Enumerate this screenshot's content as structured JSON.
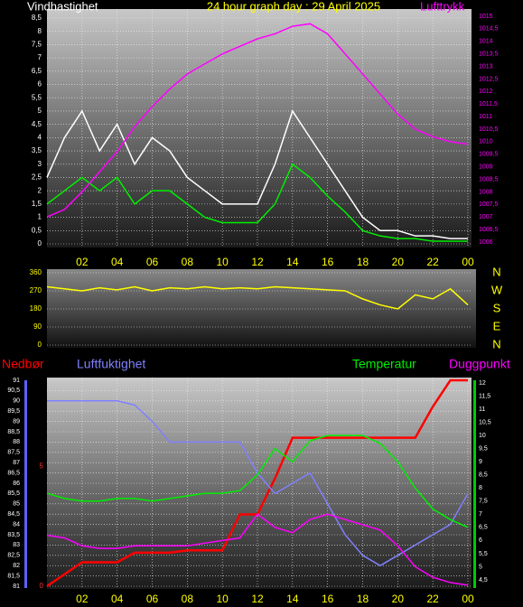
{
  "chart_data": [
    {
      "type": "line",
      "title": "24 hour graph day : 29 April 2025",
      "ylabel": "Vindhastighet",
      "y2label": "Lufttrykk",
      "x": [
        0,
        1,
        2,
        3,
        4,
        5,
        6,
        7,
        8,
        9,
        10,
        11,
        12,
        13,
        14,
        15,
        16,
        17,
        18,
        19,
        20,
        21,
        22,
        23,
        24
      ],
      "xlim": [
        0,
        24
      ],
      "xticks": [
        {
          "value": 2,
          "label": "02"
        },
        {
          "value": 4,
          "label": "04"
        },
        {
          "value": 6,
          "label": "06"
        },
        {
          "value": 8,
          "label": "08"
        },
        10,
        12,
        14,
        16,
        18,
        20,
        22,
        {
          "value": 24,
          "label": "00"
        }
      ],
      "ylim": [
        0,
        8.5
      ],
      "yticks": [
        0,
        {
          "value": 0.5,
          "label": "0,5"
        },
        1,
        {
          "value": 1.5,
          "label": "1,5"
        },
        2,
        {
          "value": 2.5,
          "label": "2,5"
        },
        3,
        {
          "value": 3.5,
          "label": "3,5"
        },
        4,
        {
          "value": 4.5,
          "label": "4,5"
        },
        5,
        {
          "value": 5.5,
          "label": "5,5"
        },
        6,
        {
          "value": 6.5,
          "label": "6,5"
        },
        7,
        {
          "value": 7.5,
          "label": "7,5"
        },
        8,
        {
          "value": 8.5,
          "label": "8,5"
        }
      ],
      "y2lim": [
        1006,
        1015
      ],
      "y2ticks": [
        1006,
        {
          "value": 1006.5,
          "label": "1006,5"
        },
        1007,
        {
          "value": 1007.5,
          "label": "1007,5"
        },
        1008,
        {
          "value": 1008.5,
          "label": "1008,5"
        },
        1009,
        {
          "value": 1009.5,
          "label": "1009,5"
        },
        1010,
        {
          "value": 1010.5,
          "label": "1010,5"
        },
        1011,
        {
          "value": 1011.5,
          "label": "1011,5"
        },
        1012,
        {
          "value": 1012.5,
          "label": "1012,5"
        },
        1013,
        {
          "value": 1013.5,
          "label": "1013,5"
        },
        1014,
        {
          "value": 1014.5,
          "label": "1014,5"
        },
        1015
      ],
      "grid": true,
      "series": [
        {
          "color": "#ffffff",
          "values": [
            2.5,
            4,
            5,
            3.5,
            4.5,
            3,
            4,
            3.5,
            2.5,
            2,
            1.5,
            1.5,
            1.5,
            3,
            5,
            4,
            3,
            2,
            1,
            0.5,
            0.5,
            0.3,
            0.3,
            0.2,
            0.2
          ]
        },
        {
          "color": "#00ee00",
          "values": [
            1.5,
            2,
            2.5,
            2,
            2.5,
            1.5,
            2,
            2,
            1.5,
            1,
            0.8,
            0.8,
            0.8,
            1.5,
            3,
            2.5,
            1.8,
            1.2,
            0.5,
            0.3,
            0.2,
            0.2,
            0.1,
            0.1,
            0.1
          ]
        },
        {
          "color": "#ff00ff",
          "axis": "y2",
          "values": [
            1007,
            1007.3,
            1008,
            1008.8,
            1009.6,
            1010.6,
            1011.4,
            1012.1,
            1012.7,
            1013.1,
            1013.5,
            1013.8,
            1014.1,
            1014.3,
            1014.6,
            1014.7,
            1014.3,
            1013.5,
            1012.7,
            1011.9,
            1011.1,
            1010.5,
            1010.2,
            1010,
            1009.9
          ]
        }
      ]
    },
    {
      "type": "line",
      "x": [
        0,
        1,
        2,
        3,
        4,
        5,
        6,
        7,
        8,
        9,
        10,
        11,
        12,
        13,
        14,
        15,
        16,
        17,
        18,
        19,
        20,
        21,
        22,
        23,
        24
      ],
      "xlim": [
        0,
        24
      ],
      "ylim": [
        0,
        360
      ],
      "yticks": [
        0,
        90,
        180,
        270,
        360
      ],
      "y2ticks": [
        {
          "value": 360,
          "label": "N"
        },
        {
          "value": 270,
          "label": "W"
        },
        {
          "value": 180,
          "label": "S"
        },
        {
          "value": 90,
          "label": "E"
        },
        {
          "value": 0,
          "label": "N"
        }
      ],
      "grid": true,
      "series": [
        {
          "color": "#ffff00",
          "values": [
            290,
            280,
            270,
            285,
            275,
            290,
            270,
            285,
            280,
            290,
            280,
            285,
            280,
            290,
            285,
            280,
            275,
            270,
            230,
            200,
            180,
            250,
            230,
            280,
            200
          ]
        }
      ]
    },
    {
      "type": "line",
      "x": [
        0,
        1,
        2,
        3,
        4,
        5,
        6,
        7,
        8,
        9,
        10,
        11,
        12,
        13,
        14,
        15,
        16,
        17,
        18,
        19,
        20,
        21,
        22,
        23,
        24
      ],
      "xlim": [
        0,
        24
      ],
      "xticks": [
        {
          "value": 2,
          "label": "02"
        },
        {
          "value": 4,
          "label": "04"
        },
        {
          "value": 6,
          "label": "06"
        },
        {
          "value": 8,
          "label": "08"
        },
        10,
        12,
        14,
        16,
        18,
        20,
        22,
        {
          "value": 24,
          "label": "00"
        }
      ],
      "ylim": [
        81,
        91
      ],
      "yticks": [
        81,
        {
          "value": 81.5,
          "label": "81,5"
        },
        82,
        {
          "value": 82.5,
          "label": "82,5"
        },
        83,
        {
          "value": 83.5,
          "label": "83,5"
        },
        84,
        {
          "value": 84.5,
          "label": "84,5"
        },
        85,
        {
          "value": 85.5,
          "label": "85,5"
        },
        86,
        {
          "value": 86.5,
          "label": "86,5"
        },
        87,
        {
          "value": 87.5,
          "label": "87,5"
        },
        88,
        {
          "value": 88.5,
          "label": "88,5"
        },
        89,
        {
          "value": 89.5,
          "label": "89,5"
        },
        90,
        {
          "value": 90.5,
          "label": "90,5"
        },
        91
      ],
      "y2lim": [
        4.5,
        12
      ],
      "y2ticks": [
        {
          "value": 4.5,
          "label": "4,5"
        },
        5,
        {
          "value": 5.5,
          "label": "5,5"
        },
        6,
        {
          "value": 6.5,
          "label": "6,5"
        },
        7,
        {
          "value": 7.5,
          "label": "7,5"
        },
        8,
        {
          "value": 8.5,
          "label": "8,5"
        },
        9,
        {
          "value": 9.5,
          "label": "9,5"
        },
        10,
        {
          "value": 10.5,
          "label": "10,5"
        },
        11,
        {
          "value": 11.5,
          "label": "11,5"
        },
        12
      ],
      "y3lim": [
        0,
        8.6
      ],
      "y3ticks": [
        0,
        5
      ],
      "grid": true,
      "series": [
        {
          "name": "Nedbør",
          "color": "#ff0000",
          "axis": "y3",
          "values": [
            0,
            0.5,
            1,
            1,
            1,
            1.4,
            1.4,
            1.4,
            1.5,
            1.5,
            1.5,
            3,
            3,
            4.5,
            6.2,
            6.2,
            6.2,
            6.2,
            6.2,
            6.2,
            6.2,
            6.2,
            7.5,
            8.6,
            8.6
          ]
        },
        {
          "name": "Luftfuktighet",
          "color": "#8080ff",
          "values": [
            90,
            90,
            90,
            90,
            90,
            89.8,
            89,
            88,
            88,
            88,
            88,
            88,
            86.5,
            85.5,
            86,
            86.5,
            85,
            83.5,
            82.5,
            82,
            82.5,
            83,
            83.5,
            84,
            85.5
          ]
        },
        {
          "name": "Temperatur",
          "color": "#00ee00",
          "axis": "y2",
          "values": [
            7.8,
            7.6,
            7.5,
            7.5,
            7.6,
            7.6,
            7.5,
            7.6,
            7.7,
            7.8,
            7.8,
            7.9,
            8.5,
            9.5,
            9,
            9.8,
            10,
            10,
            10,
            9.7,
            9,
            8,
            7.2,
            6.8,
            6.5
          ]
        },
        {
          "name": "Duggpunkt",
          "color": "#ff00ff",
          "axis": "y2",
          "values": [
            6.2,
            6.1,
            5.8,
            5.7,
            5.7,
            5.8,
            5.8,
            5.8,
            5.8,
            5.9,
            6,
            6.1,
            7,
            6.5,
            6.3,
            6.8,
            7,
            6.8,
            6.6,
            6.4,
            5.8,
            5,
            4.6,
            4.4,
            4.3
          ]
        }
      ]
    }
  ]
}
